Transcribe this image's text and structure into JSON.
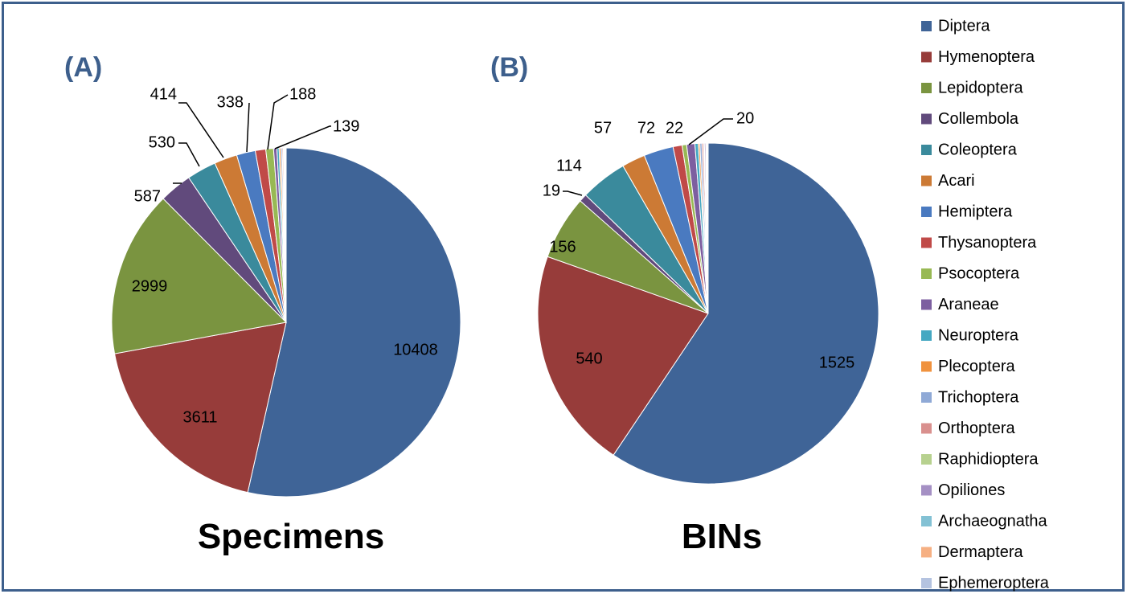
{
  "colors": {
    "Diptera": "#3f6497",
    "Hymenoptera": "#973c3a",
    "Lepidoptera": "#7a9440",
    "Collembola": "#614a7c",
    "Coleoptera": "#3a8a9c",
    "Acari": "#cc7a35",
    "Hemiptera": "#4a7ac0",
    "Thysanoptera": "#c04a48",
    "Psocoptera": "#98b954",
    "Araneae": "#7d5fa0",
    "Neuroptera": "#45a8c2",
    "Plecoptera": "#f0923e",
    "Trichoptera": "#8fa9d6",
    "Orthoptera": "#d9908e",
    "Raphidioptera": "#b7d18f",
    "Opiliones": "#a590c4",
    "Archaeognatha": "#83c1d4",
    "Dermaptera": "#f6b083",
    "Ephemeroptera": "#b4c3e0"
  },
  "chart_data": [
    {
      "type": "pie",
      "panel_label": "(A)",
      "title": "Specimens",
      "categories": [
        "Diptera",
        "Hymenoptera",
        "Lepidoptera",
        "Collembola",
        "Coleoptera",
        "Acari",
        "Hemiptera",
        "Thysanoptera",
        "Psocoptera",
        "Araneae",
        "Neuroptera",
        "Plecoptera",
        "Trichoptera",
        "Orthoptera",
        "Raphidioptera",
        "Opiliones",
        "Archaeognatha",
        "Dermaptera",
        "Ephemeroptera"
      ],
      "values": [
        10408,
        3611,
        2999,
        587,
        530,
        414,
        338,
        188,
        139,
        60,
        40,
        30,
        25,
        20,
        15,
        12,
        10,
        8,
        5
      ],
      "data_labels": [
        "10408",
        "3611",
        "2999",
        "587",
        "530",
        "414",
        "338",
        "188",
        "139",
        "",
        "",
        "",
        "",
        "",
        "",
        "",
        "",
        "",
        ""
      ]
    },
    {
      "type": "pie",
      "panel_label": "(B)",
      "title": "BINs",
      "categories": [
        "Diptera",
        "Hymenoptera",
        "Lepidoptera",
        "Collembola",
        "Coleoptera",
        "Acari",
        "Hemiptera",
        "Thysanoptera",
        "Psocoptera",
        "Araneae",
        "Neuroptera",
        "Plecoptera",
        "Trichoptera",
        "Orthoptera",
        "Raphidioptera",
        "Opiliones",
        "Archaeognatha",
        "Dermaptera",
        "Ephemeroptera"
      ],
      "values": [
        1525,
        540,
        156,
        19,
        114,
        57,
        72,
        22,
        11,
        20,
        8,
        4,
        5,
        4,
        2,
        3,
        2,
        2,
        2
      ],
      "data_labels": [
        "1525",
        "540",
        "156",
        "19",
        "114",
        "57",
        "72",
        "22",
        "",
        "20",
        "",
        "",
        "",
        "",
        "",
        "",
        "",
        "",
        ""
      ]
    }
  ],
  "legend": {
    "placement": "right",
    "entries": [
      "Diptera",
      "Hymenoptera",
      "Lepidoptera",
      "Collembola",
      "Coleoptera",
      "Acari",
      "Hemiptera",
      "Thysanoptera",
      "Psocoptera",
      "Araneae",
      "Neuroptera",
      "Plecoptera",
      "Trichoptera",
      "Orthoptera",
      "Raphidioptera",
      "Opiliones",
      "Archaeognatha",
      "Dermaptera",
      "Ephemeroptera"
    ]
  }
}
